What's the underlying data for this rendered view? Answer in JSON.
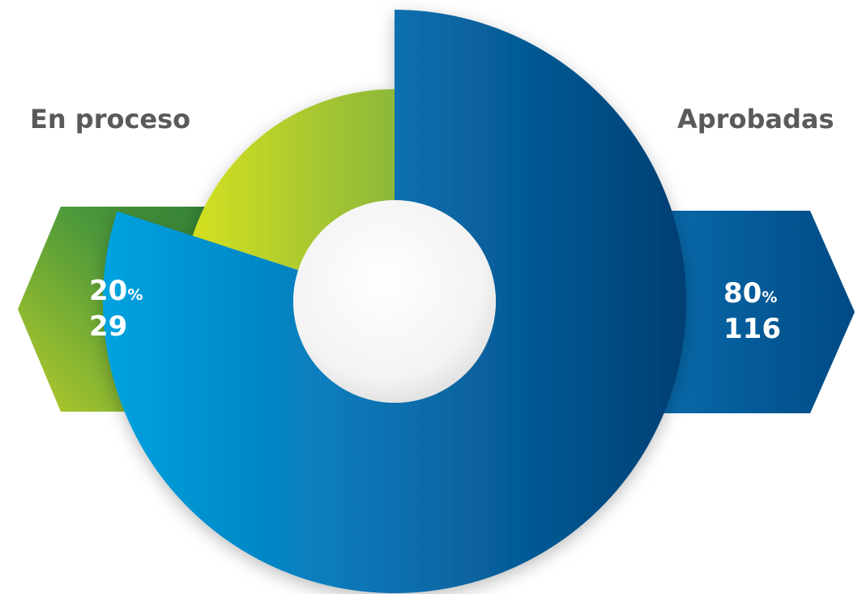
{
  "chart_data": {
    "type": "pie",
    "categories": [
      "En proceso",
      "Aprobadas"
    ],
    "values": [
      29,
      116
    ],
    "percentages": [
      20,
      80
    ],
    "percent_sign": "%",
    "colors": {
      "En proceso": [
        "#d4e021",
        "#8cb83a",
        "#3e8a3a"
      ],
      "Aprobadas": [
        "#00a3e0",
        "#0069a8",
        "#003f73"
      ]
    }
  }
}
